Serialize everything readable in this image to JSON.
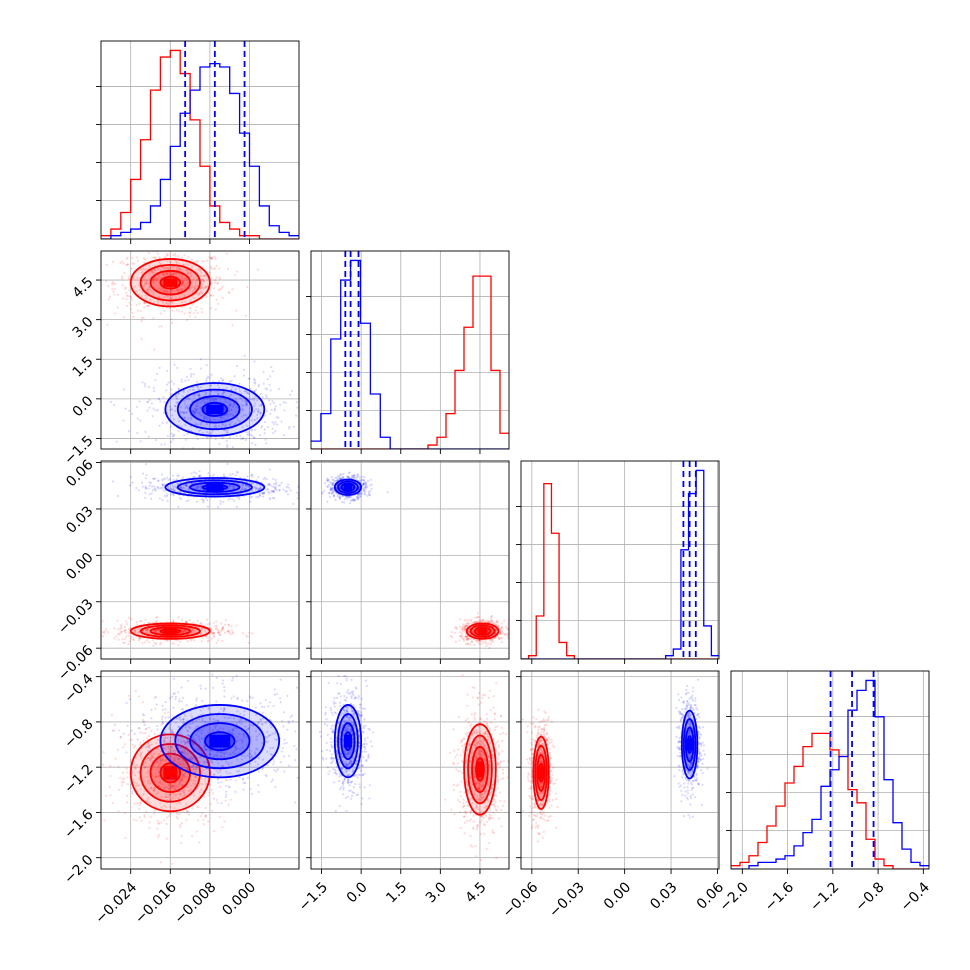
{
  "chart_data": {
    "type": "corner-plot",
    "title": "",
    "dimensions": 4,
    "colors": {
      "series_a": "#0000ff",
      "series_b": "#ff0000",
      "grid": "#b0b0b0"
    },
    "series": [
      {
        "color": "#0000ff",
        "medians": [
          -0.007,
          -0.4,
          0.042,
          -1.03
        ],
        "quantile_lines": [
          [
            -0.013,
            -0.007,
            -0.001
          ],
          [
            -0.6,
            -0.4,
            -0.1
          ],
          [
            0.038,
            0.042,
            0.046
          ],
          [
            -1.22,
            -1.03,
            -0.84
          ]
        ]
      },
      {
        "color": "#ff0000",
        "medians": [
          -0.016,
          4.5,
          -0.048,
          -1.22
        ]
      }
    ],
    "axes": [
      {
        "lim": [
          -0.03,
          0.01
        ],
        "ticks": [
          "-0.024",
          "-0.016",
          "-0.008",
          "0.000"
        ],
        "tick_values": [
          -0.024,
          -0.016,
          -0.008,
          0.0
        ]
      },
      {
        "lim": [
          -1.9,
          5.6
        ],
        "ticks": [
          "-1.5",
          "0.0",
          "1.5",
          "3.0",
          "4.5"
        ],
        "tick_values": [
          -1.5,
          0.0,
          1.5,
          3.0,
          4.5
        ]
      },
      {
        "lim": [
          -0.067,
          0.061
        ],
        "ticks": [
          "-0.06",
          "-0.03",
          "0.00",
          "0.03",
          "0.06"
        ],
        "tick_values": [
          -0.06,
          -0.03,
          0.0,
          0.03,
          0.06
        ]
      },
      {
        "lim": [
          -2.1,
          -0.35
        ],
        "ticks": [
          "-2.0",
          "-1.6",
          "-1.2",
          "-0.8",
          "-0.4"
        ],
        "tick_values": [
          -2.0,
          -1.6,
          -1.2,
          -0.8,
          -0.4
        ]
      }
    ],
    "histograms": {
      "0": {
        "bins_range": [
          -0.03,
          0.01
        ],
        "blue": [
          0,
          1,
          2,
          3,
          5,
          10,
          18,
          28,
          38,
          45,
          52,
          53,
          52,
          44,
          32,
          22,
          10,
          4,
          2,
          1
        ],
        "red": [
          1,
          3,
          8,
          18,
          30,
          45,
          55,
          57,
          50,
          36,
          22,
          10,
          5,
          3,
          1,
          1,
          0,
          0,
          0,
          0
        ]
      },
      "1": {
        "bins_range": [
          -1.9,
          5.6
        ],
        "blue": [
          2,
          9,
          28,
          43,
          48,
          32,
          14,
          3,
          0,
          0,
          0,
          0,
          0,
          0,
          0,
          0,
          0,
          0,
          0,
          0
        ],
        "red": [
          0,
          0,
          0,
          0,
          0,
          0,
          0,
          0,
          0,
          0,
          0,
          0,
          0,
          1,
          3,
          9,
          20,
          31,
          44,
          44,
          20,
          4
        ]
      },
      "2": {
        "bins_range": [
          -0.067,
          0.061
        ],
        "blue": [
          0,
          0,
          0,
          0,
          0,
          0,
          0,
          0,
          0,
          0,
          0,
          0,
          0,
          0,
          0,
          0,
          0,
          0,
          0,
          1,
          3,
          33,
          50,
          57,
          10,
          1
        ],
        "red": [
          0,
          1,
          13,
          53,
          38,
          5,
          1,
          0,
          0,
          0,
          0,
          0,
          0,
          0,
          0,
          0,
          0,
          0,
          0,
          0,
          0,
          0,
          0,
          0,
          0,
          0
        ]
      },
      "3": {
        "bins_range": [
          -2.1,
          -0.35
        ],
        "blue": [
          0,
          0,
          1,
          2,
          2,
          3,
          4,
          7,
          11,
          15,
          25,
          30,
          34,
          48,
          54,
          57,
          46,
          27,
          14,
          6,
          2,
          1
        ],
        "red": [
          1,
          2,
          4,
          8,
          13,
          19,
          26,
          31,
          37,
          41,
          41,
          36,
          34,
          24,
          20,
          9,
          3,
          1,
          0,
          0,
          0,
          0
        ]
      }
    },
    "pairs": [
      {
        "row": 1,
        "col": 0,
        "blue": {
          "mx": -0.007,
          "my": -0.4,
          "sx": 0.005,
          "sy": 0.5
        },
        "red": {
          "mx": -0.016,
          "my": 4.4,
          "sx": 0.004,
          "sy": 0.45
        }
      },
      {
        "row": 2,
        "col": 0,
        "blue": {
          "mx": -0.007,
          "my": 0.044,
          "sx": 0.005,
          "sy": 0.003
        },
        "red": {
          "mx": -0.016,
          "my": -0.049,
          "sx": 0.004,
          "sy": 0.0025
        }
      },
      {
        "row": 2,
        "col": 1,
        "blue": {
          "mx": -0.5,
          "my": 0.044,
          "sx": 0.25,
          "sy": 0.0025
        },
        "red": {
          "mx": 4.6,
          "my": -0.049,
          "sx": 0.3,
          "sy": 0.0025
        }
      },
      {
        "row": 3,
        "col": 0,
        "blue": {
          "mx": -0.006,
          "my": -0.97,
          "sx": 0.006,
          "sy": 0.16
        },
        "red": {
          "mx": -0.016,
          "my": -1.25,
          "sx": 0.004,
          "sy": 0.17
        }
      },
      {
        "row": 3,
        "col": 1,
        "blue": {
          "mx": -0.5,
          "my": -0.97,
          "sx": 0.25,
          "sy": 0.16
        },
        "red": {
          "mx": 4.5,
          "my": -1.22,
          "sx": 0.3,
          "sy": 0.2
        }
      },
      {
        "row": 3,
        "col": 2,
        "blue": {
          "mx": 0.042,
          "my": -1.0,
          "sx": 0.0025,
          "sy": 0.15
        },
        "red": {
          "mx": -0.054,
          "my": -1.25,
          "sx": 0.0025,
          "sy": 0.16
        }
      }
    ]
  }
}
